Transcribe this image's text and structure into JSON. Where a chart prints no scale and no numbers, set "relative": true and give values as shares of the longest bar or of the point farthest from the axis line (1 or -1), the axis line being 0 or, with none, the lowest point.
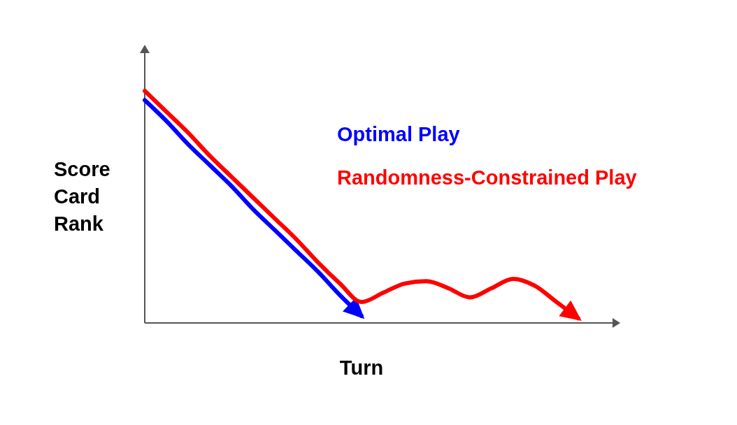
{
  "chart_data": {
    "type": "line",
    "relative": true,
    "xlabel": "Turn",
    "ylabel": "Score Card Rank",
    "legend": "top right",
    "marker": "none",
    "categories": [
      null,
      null,
      null,
      null,
      null,
      null,
      null,
      null,
      null,
      null,
      null,
      null,
      null,
      null,
      null,
      null,
      null,
      null,
      null,
      null,
      null
    ],
    "series": [
      {
        "name": "Optimal Play",
        "color": "#0000ff",
        "values": [
          0.96,
          0.87,
          0.77,
          0.68,
          0.59,
          0.49,
          0.4,
          0.31,
          0.22,
          0.12,
          0.03,
          null,
          null,
          null,
          null,
          null,
          null,
          null,
          null,
          null,
          null
        ]
      },
      {
        "name": "Randomness-Constrained Play",
        "color": "#ff0000",
        "values": [
          1,
          0.91,
          0.82,
          0.72,
          0.63,
          0.54,
          0.45,
          0.36,
          0.26,
          0.17,
          0.09,
          0.13,
          0.17,
          0.18,
          0.15,
          0.11,
          0.15,
          0.19,
          0.16,
          0.09,
          0.02
        ]
      }
    ]
  }
}
